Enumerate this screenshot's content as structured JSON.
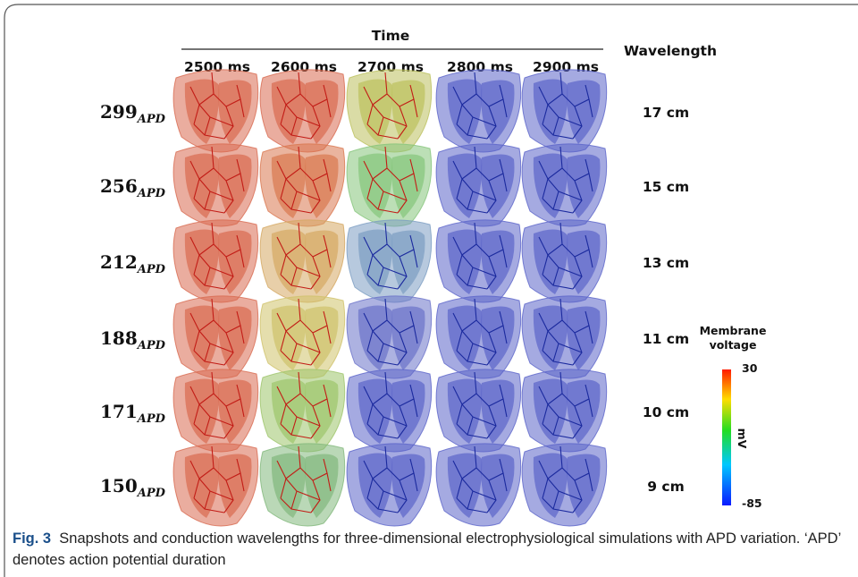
{
  "figure": {
    "header": {
      "title": "Time",
      "columns": [
        "2500 ms",
        "2600 ms",
        "2700 ms",
        "2800 ms",
        "2900 ms"
      ],
      "wavelength_title": "Wavelength"
    },
    "rows": [
      {
        "label": "299",
        "subscript": "APD",
        "wavelength": "17 cm"
      },
      {
        "label": "256",
        "subscript": "APD",
        "wavelength": "15 cm"
      },
      {
        "label": "212",
        "subscript": "APD",
        "wavelength": "13 cm"
      },
      {
        "label": "188",
        "subscript": "APD",
        "wavelength": "11 cm"
      },
      {
        "label": "171",
        "subscript": "APD",
        "wavelength": "10 cm"
      },
      {
        "label": "150",
        "subscript": "APD",
        "wavelength": "9 cm"
      }
    ],
    "colorbar": {
      "title_lines": [
        "Membrane",
        "voltage"
      ],
      "max_label": "30",
      "min_label": "-85",
      "unit": "mV"
    }
  },
  "caption": {
    "label": "Fig. 3",
    "text": "Snapshots and conduction wavelengths for three-dimensional electrophysiological simulations with APD variation. ‘APD’ denotes action potential duration"
  }
}
